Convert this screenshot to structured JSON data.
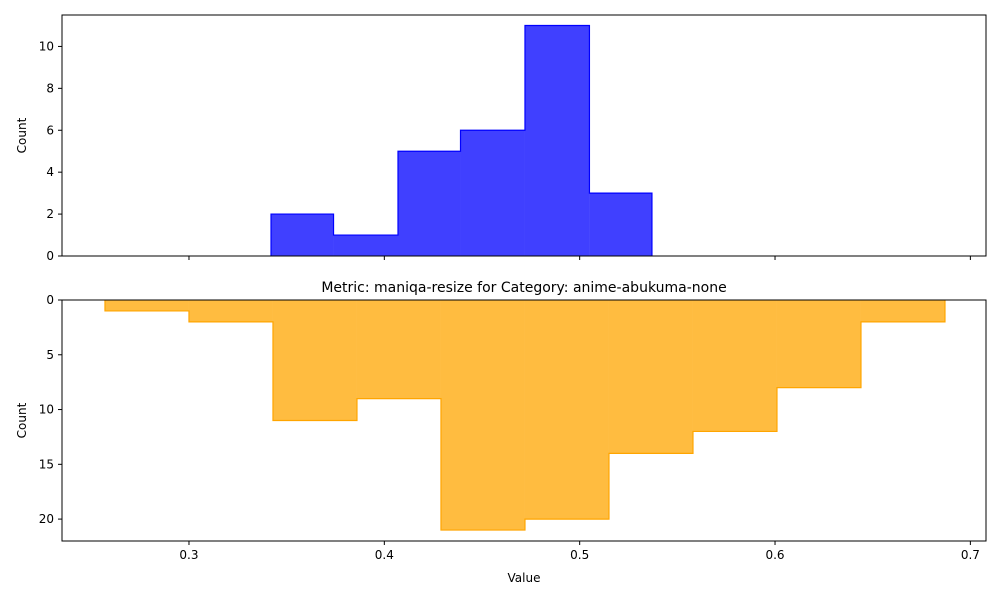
{
  "chart_data": [
    {
      "type": "bar",
      "histogram": true,
      "bin_edges": [
        0.342,
        0.374,
        0.407,
        0.439,
        0.472,
        0.505,
        0.537
      ],
      "values": [
        2,
        1,
        5,
        6,
        11,
        3
      ],
      "color": "#0000ff",
      "xlim": [
        0.235,
        0.708
      ],
      "ylim": [
        0,
        11.5
      ],
      "x_ticks": [
        0.3,
        0.4,
        0.5,
        0.6,
        0.7
      ],
      "y_ticks": [
        0,
        2,
        4,
        6,
        8,
        10
      ],
      "show_x_tick_labels": false,
      "title": "",
      "xlabel": "",
      "ylabel": "Count",
      "grid": false
    },
    {
      "type": "bar",
      "histogram": true,
      "inverted_y": true,
      "bin_edges": [
        0.257,
        0.3,
        0.343,
        0.386,
        0.429,
        0.472,
        0.515,
        0.558,
        0.601,
        0.644,
        0.687
      ],
      "values": [
        1,
        2,
        11,
        9,
        21,
        20,
        14,
        12,
        8,
        2
      ],
      "color": "#ffa500",
      "xlim": [
        0.235,
        0.708
      ],
      "ylim": [
        0,
        22
      ],
      "x_ticks": [
        0.3,
        0.4,
        0.5,
        0.6,
        0.7
      ],
      "y_ticks": [
        0,
        5,
        10,
        15,
        20
      ],
      "show_x_tick_labels": true,
      "title": "Metric: maniqa-resize for Category: anime-abukuma-none",
      "xlabel": "Value",
      "ylabel": "Count",
      "grid": false
    }
  ]
}
